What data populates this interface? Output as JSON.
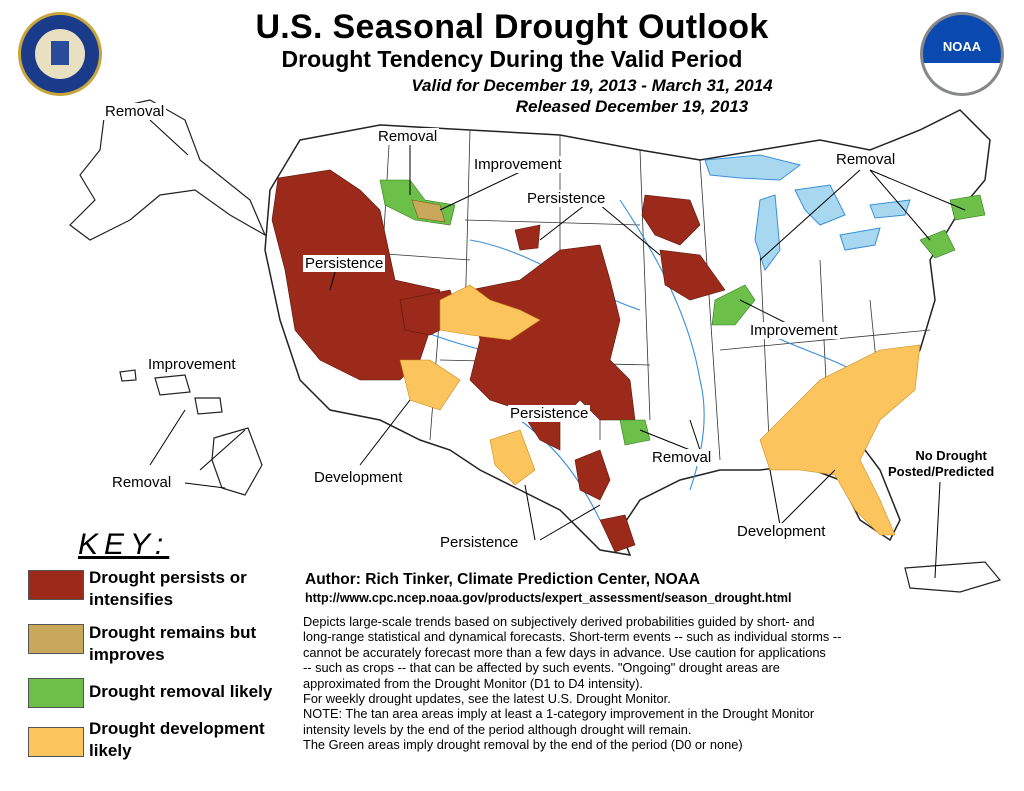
{
  "header": {
    "title": "U.S. Seasonal Drought Outlook",
    "subtitle": "Drought Tendency During the Valid Period",
    "valid": "Valid for December 19, 2013 - March 31, 2014",
    "released": "Released December 19, 2013"
  },
  "logos": {
    "left": "department-of-commerce-seal",
    "right": "noaa-logo",
    "noaa_text": "NOAA"
  },
  "map_labels": {
    "removal_alaska": "Removal",
    "removal_northwest": "Removal",
    "improvement_montana": "Improvement",
    "persistence_dakotas": "Persistence",
    "persistence_west": "Persistence",
    "removal_northeast": "Removal",
    "improvement_midwest": "Improvement",
    "improvement_hawaii": "Improvement",
    "removal_hawaii": "Removal",
    "persistence_southplains": "Persistence",
    "removal_texas": "Removal",
    "development_southwest": "Development",
    "development_southeast": "Development",
    "persistence_texas": "Persistence",
    "no_drought": "No Drought",
    "posted_predicted": "Posted/Predicted"
  },
  "key": {
    "title": "KEY:",
    "items": [
      {
        "label": "Drought persists or intensifies",
        "color": "#9b2a1a"
      },
      {
        "label": "Drought remains but improves",
        "color": "#c8a85a"
      },
      {
        "label": "Drought removal likely",
        "color": "#6cc04a"
      },
      {
        "label": "Drought development likely",
        "color": "#fbc45c"
      }
    ]
  },
  "footer": {
    "author": "Author: Rich Tinker, Climate Prediction Center, NOAA",
    "url": "http://www.cpc.ncep.noaa.gov/products/expert_assessment/season_drought.html",
    "lines": [
      "Depicts large-scale trends based on subjectively derived probabilities guided by short- and",
      "long-range statistical and dynamical forecasts. Short-term events -- such as individual storms --",
      "cannot be accurately forecast more than a few days in advance. Use caution for applications",
      "-- such as crops -- that can be affected by such events. \"Ongoing\" drought areas are",
      "approximated from the Drought Monitor (D1 to D4 intensity).",
      "For weekly drought updates, see the latest U.S. Drought Monitor.",
      "NOTE: The tan area areas imply at least a 1-category improvement in the Drought Monitor",
      "intensity levels by the end of the period although drought will remain.",
      "The Green areas imply drought removal by the end of the period (D0 or none)"
    ]
  },
  "colors": {
    "persist": "#9b2a1a",
    "improve": "#c8a85a",
    "removal": "#6cc04a",
    "development": "#fbc45c",
    "water": "#a8d8f0",
    "river": "#3a8fd8"
  }
}
